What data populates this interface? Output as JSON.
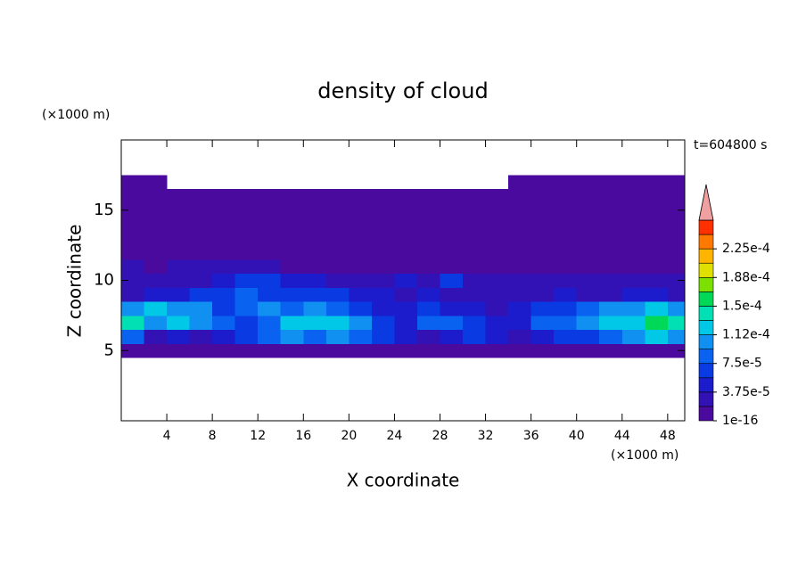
{
  "chart_data": {
    "type": "contour",
    "title": "density of cloud",
    "x_label": "X coordinate",
    "y_label": "Z coordinate",
    "x_unit": "(×1000 m)",
    "y_unit": "(×1000 m)",
    "annotation": "t=604800 s",
    "xlim": [
      0,
      49.5
    ],
    "ylim": [
      0,
      20
    ],
    "xticks": [
      4,
      8,
      12,
      16,
      20,
      24,
      28,
      32,
      36,
      40,
      44,
      48
    ],
    "yticks": [
      5,
      10,
      15
    ],
    "x": [
      1,
      3,
      5,
      7,
      9,
      11,
      13,
      15,
      17,
      19,
      21,
      23,
      25,
      27,
      29,
      31,
      33,
      35,
      37,
      39,
      41,
      43,
      45,
      47,
      49
    ],
    "y": [
      5,
      6,
      7,
      8,
      9,
      10,
      11,
      12,
      13,
      14,
      15,
      16,
      17
    ],
    "z": [
      [
        9e-06,
        9e-06,
        9e-06,
        9e-06,
        9e-06,
        9e-06,
        9e-06,
        9e-06,
        9e-06,
        9e-06,
        9e-06,
        9e-06,
        9e-06,
        9e-06,
        9e-06,
        9e-06,
        9e-06,
        9e-06,
        9e-06,
        9e-06,
        9e-06,
        9e-06,
        9e-06,
        9e-06,
        9e-06
      ],
      [
        8.4e-05,
        2.8e-05,
        4.7e-05,
        2.8e-05,
        4.7e-05,
        6.5e-05,
        8.4e-05,
        0.000103,
        8.4e-05,
        0.000103,
        8.4e-05,
        6.5e-05,
        4.7e-05,
        2.8e-05,
        4.7e-05,
        6.5e-05,
        4.7e-05,
        2.8e-05,
        4.7e-05,
        6.5e-05,
        6.5e-05,
        8.4e-05,
        0.000103,
        0.000122,
        0.000103
      ],
      [
        0.00014,
        0.000103,
        0.000122,
        0.000103,
        8.4e-05,
        6.5e-05,
        8.4e-05,
        0.000122,
        0.000122,
        0.000122,
        0.000103,
        6.5e-05,
        4.7e-05,
        8.4e-05,
        8.4e-05,
        6.5e-05,
        4.7e-05,
        4.7e-05,
        8.4e-05,
        8.4e-05,
        0.000103,
        0.000122,
        0.000122,
        0.00016,
        0.00014
      ],
      [
        0.000103,
        0.000122,
        0.000103,
        0.000103,
        6.5e-05,
        8.4e-05,
        0.000103,
        8.4e-05,
        0.000103,
        8.4e-05,
        6.5e-05,
        4.7e-05,
        4.7e-05,
        6.5e-05,
        4.7e-05,
        4.7e-05,
        2.8e-05,
        4.7e-05,
        6.5e-05,
        6.5e-05,
        8.4e-05,
        0.000103,
        0.000103,
        0.000122,
        0.000103
      ],
      [
        2.8e-05,
        4.7e-05,
        4.7e-05,
        6.5e-05,
        6.5e-05,
        8.4e-05,
        6.5e-05,
        6.5e-05,
        6.5e-05,
        6.5e-05,
        4.7e-05,
        4.7e-05,
        2.8e-05,
        4.7e-05,
        2.8e-05,
        2.8e-05,
        2.8e-05,
        2.8e-05,
        2.8e-05,
        4.7e-05,
        2.8e-05,
        2.8e-05,
        4.7e-05,
        4.7e-05,
        2.8e-05
      ],
      [
        2.8e-05,
        2.8e-05,
        2.8e-05,
        2.8e-05,
        4.7e-05,
        6.5e-05,
        6.5e-05,
        4.7e-05,
        4.7e-05,
        2.8e-05,
        2.8e-05,
        2.8e-05,
        4.7e-05,
        2.8e-05,
        6.5e-05,
        2.8e-05,
        2.8e-05,
        2.8e-05,
        2.8e-05,
        2.8e-05,
        2.8e-05,
        2.8e-05,
        2.8e-05,
        2.8e-05,
        2.8e-05
      ],
      [
        2.8e-05,
        9e-06,
        2.8e-05,
        2.8e-05,
        2.8e-05,
        2.8e-05,
        2.8e-05,
        9e-06,
        9e-06,
        9e-06,
        9e-06,
        9e-06,
        9e-06,
        9e-06,
        9e-06,
        9e-06,
        9e-06,
        9e-06,
        9e-06,
        9e-06,
        9e-06,
        9e-06,
        9e-06,
        9e-06,
        9e-06
      ],
      [
        9e-06,
        9e-06,
        9e-06,
        9e-06,
        9e-06,
        9e-06,
        9e-06,
        9e-06,
        9e-06,
        9e-06,
        9e-06,
        9e-06,
        9e-06,
        9e-06,
        9e-06,
        9e-06,
        9e-06,
        9e-06,
        9e-06,
        9e-06,
        9e-06,
        9e-06,
        9e-06,
        9e-06,
        9e-06
      ],
      [
        9e-06,
        9e-06,
        9e-06,
        9e-06,
        9e-06,
        9e-06,
        9e-06,
        9e-06,
        9e-06,
        9e-06,
        9e-06,
        9e-06,
        9e-06,
        9e-06,
        9e-06,
        9e-06,
        9e-06,
        9e-06,
        9e-06,
        9e-06,
        9e-06,
        9e-06,
        9e-06,
        9e-06,
        9e-06
      ],
      [
        9e-06,
        9e-06,
        9e-06,
        9e-06,
        9e-06,
        9e-06,
        9e-06,
        9e-06,
        9e-06,
        9e-06,
        9e-06,
        9e-06,
        9e-06,
        9e-06,
        9e-06,
        9e-06,
        9e-06,
        9e-06,
        9e-06,
        9e-06,
        9e-06,
        9e-06,
        9e-06,
        9e-06,
        9e-06
      ],
      [
        9e-06,
        9e-06,
        9e-06,
        9e-06,
        9e-06,
        9e-06,
        9e-06,
        9e-06,
        9e-06,
        9e-06,
        9e-06,
        9e-06,
        9e-06,
        9e-06,
        9e-06,
        9e-06,
        9e-06,
        9e-06,
        9e-06,
        9e-06,
        9e-06,
        9e-06,
        9e-06,
        9e-06,
        9e-06
      ],
      [
        9e-06,
        9e-06,
        9e-06,
        9e-06,
        9e-06,
        9e-06,
        9e-06,
        9e-06,
        9e-06,
        9e-06,
        9e-06,
        9e-06,
        9e-06,
        9e-06,
        9e-06,
        9e-06,
        9e-06,
        9e-06,
        9e-06,
        9e-06,
        9e-06,
        9e-06,
        9e-06,
        9e-06,
        9e-06
      ],
      [
        9e-06,
        9e-06,
        null,
        null,
        null,
        null,
        null,
        null,
        null,
        null,
        null,
        null,
        null,
        null,
        null,
        null,
        null,
        9e-06,
        9e-06,
        9e-06,
        9e-06,
        9e-06,
        9e-06,
        9e-06,
        9e-06
      ]
    ],
    "levels": [
      1e-16,
      1.875e-05,
      3.75e-05,
      5.625e-05,
      7.5e-05,
      9.375e-05,
      0.0001125,
      0.00013125,
      0.00015,
      0.00016875,
      0.0001875,
      0.00020625,
      0.000225,
      0.00024375,
      0.0002625
    ],
    "colors": [
      "#4a0a9e",
      "#3212b4",
      "#1c1ccc",
      "#0a3ae2",
      "#0a62f0",
      "#1090f0",
      "#00c8e6",
      "#00e0b4",
      "#00d858",
      "#7ce000",
      "#e0e000",
      "#ffb400",
      "#ff7800",
      "#ff3000"
    ],
    "extend_color": "#f0a0a0",
    "colorbar_ticks": [
      1e-16,
      {
        "value": 3.75e-05,
        "label": "3.75e-5"
      },
      {
        "value": 7.5e-05,
        "label": "7.5e-5"
      },
      {
        "value": 0.0001125,
        "label": "1.12e-4"
      },
      {
        "value": 0.00015,
        "label": "1.5e-4"
      },
      {
        "value": 0.0001875,
        "label": "1.88e-4"
      },
      {
        "value": 0.000225,
        "label": "2.25e-4"
      }
    ]
  }
}
